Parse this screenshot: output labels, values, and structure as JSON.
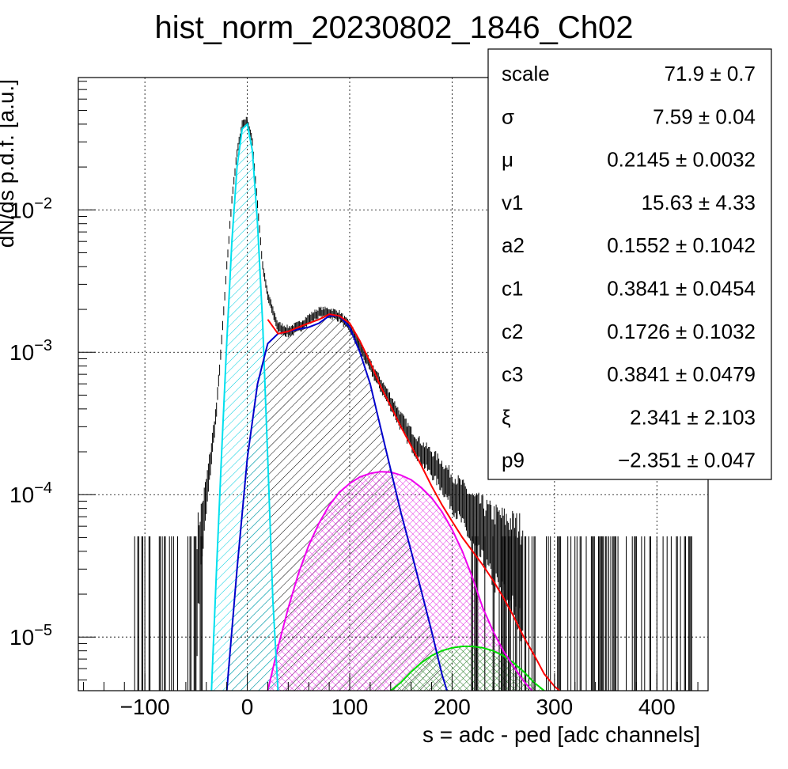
{
  "chart_data": {
    "type": "histogram",
    "title": "hist_norm_20230802_1846_Ch02",
    "xlabel": "s = adc - ped [adc channels]",
    "ylabel": "dN/ds p.d.f. [a.u.]",
    "x_range": [
      -165,
      450
    ],
    "y_range": [
      4.2e-06,
      0.085
    ],
    "y_log": true,
    "grid": true,
    "x_ticks": [
      {
        "value": -100,
        "label": "−100"
      },
      {
        "value": 0,
        "label": "0"
      },
      {
        "value": 100,
        "label": "100"
      },
      {
        "value": 200,
        "label": "200"
      },
      {
        "value": 300,
        "label": "300"
      },
      {
        "value": 400,
        "label": "400"
      }
    ],
    "y_ticks": [
      {
        "value": 1e-05,
        "base": "10",
        "exp": "−5"
      },
      {
        "value": 0.0001,
        "base": "10",
        "exp": "−4"
      },
      {
        "value": 0.001,
        "base": "10",
        "exp": "−3"
      },
      {
        "value": 0.01,
        "base": "10",
        "exp": "−2"
      }
    ],
    "data_envelope": {
      "x": [
        -50,
        -40,
        -30,
        -25,
        -20,
        -15,
        -10,
        -5,
        0,
        5,
        10,
        15,
        20,
        30,
        40,
        50,
        60,
        70,
        80,
        90,
        100,
        110,
        120,
        130,
        140,
        150,
        160,
        170,
        180,
        190,
        200,
        210,
        220,
        230,
        240,
        250,
        260,
        270
      ],
      "y": [
        3e-05,
        0.0001,
        0.0004,
        0.0012,
        0.004,
        0.012,
        0.025,
        0.04,
        0.042,
        0.03,
        0.011,
        0.004,
        0.0025,
        0.0015,
        0.0014,
        0.0015,
        0.0017,
        0.0019,
        0.0019,
        0.0018,
        0.0015,
        0.0011,
        0.0008,
        0.0006,
        0.00045,
        0.00033,
        0.00025,
        0.0002,
        0.00017,
        0.00014,
        0.00011,
        9e-05,
        7e-05,
        6e-05,
        5e-05,
        4.5e-05,
        4e-05,
        3.5e-05
      ]
    },
    "noise_floor_level": 5e-05,
    "noise_floor_range": [
      -110,
      445
    ],
    "series": [
      {
        "role": "total-fit",
        "color": "#ff0000",
        "x": [
          20,
          30,
          40,
          50,
          60,
          70,
          80,
          90,
          100,
          110,
          120,
          130,
          140,
          150,
          160,
          170,
          180,
          190,
          200,
          210,
          220,
          230,
          240,
          250,
          260,
          270,
          280,
          290,
          300,
          305
        ],
        "y": [
          0.0017,
          0.00135,
          0.0014,
          0.0015,
          0.0016,
          0.0017,
          0.00185,
          0.0018,
          0.0016,
          0.0012,
          0.00085,
          0.00058,
          0.00042,
          0.0003,
          0.00022,
          0.00016,
          0.000115,
          8.5e-05,
          6.5e-05,
          5e-05,
          4e-05,
          3.2e-05,
          2.5e-05,
          1.9e-05,
          1.4e-05,
          1e-05,
          7.5e-06,
          5.5e-06,
          4.5e-06,
          4.2e-06
        ]
      },
      {
        "role": "pedestal-peak",
        "color": "#00e0ee",
        "hatch": "cyan",
        "x": [
          -35,
          -30,
          -25,
          -20,
          -15,
          -10,
          -5,
          0,
          5,
          10,
          15,
          20,
          25,
          30
        ],
        "y": [
          4.2e-06,
          3e-05,
          0.0002,
          0.0012,
          0.006,
          0.02,
          0.037,
          0.04,
          0.026,
          0.008,
          0.0016,
          0.00018,
          1.8e-05,
          4.2e-06
        ]
      },
      {
        "role": "first-photoelectron",
        "color": "#0000cc",
        "hatch": "black",
        "x": [
          -20,
          -10,
          0,
          10,
          20,
          30,
          40,
          50,
          60,
          70,
          80,
          90,
          100,
          110,
          120,
          130,
          140,
          150,
          160,
          170,
          180,
          190,
          195
        ],
        "y": [
          4.2e-06,
          3e-05,
          0.00018,
          0.0006,
          0.00115,
          0.00135,
          0.0014,
          0.00145,
          0.0015,
          0.0016,
          0.0018,
          0.0018,
          0.0015,
          0.001,
          0.0006,
          0.0003,
          0.00015,
          7.5e-05,
          4e-05,
          2.1e-05,
          1.1e-05,
          5.5e-06,
          4.2e-06
        ]
      },
      {
        "role": "second-photoelectron",
        "color": "#ee00ee",
        "hatch": "magenta",
        "x": [
          20,
          30,
          40,
          50,
          60,
          70,
          80,
          90,
          100,
          110,
          120,
          130,
          140,
          150,
          160,
          170,
          180,
          190,
          200,
          210,
          220,
          230,
          240,
          250,
          260,
          270,
          278
        ],
        "y": [
          4.2e-06,
          8.5e-06,
          1.6e-05,
          2.8e-05,
          4.4e-05,
          6.3e-05,
          8.4e-05,
          0.000104,
          0.00012,
          0.000133,
          0.000141,
          0.000145,
          0.000144,
          0.000137,
          0.000127,
          0.000112,
          9.5e-05,
          7.6e-05,
          5.7e-05,
          4e-05,
          2.6e-05,
          1.6e-05,
          1.1e-05,
          8e-06,
          6.2e-06,
          4.9e-06,
          4.2e-06
        ]
      },
      {
        "role": "third-photoelectron",
        "color": "#00dd00",
        "hatch": "green",
        "x": [
          140,
          150,
          160,
          170,
          180,
          190,
          200,
          210,
          220,
          230,
          240,
          250,
          260,
          270,
          280,
          290
        ],
        "y": [
          4.2e-06,
          4.8e-06,
          5.7e-06,
          6.6e-06,
          7.4e-06,
          8e-06,
          8.4e-06,
          8.6e-06,
          8.6e-06,
          8.4e-06,
          8e-06,
          7.4e-06,
          6.6e-06,
          5.7e-06,
          4.8e-06,
          4.2e-06
        ]
      }
    ]
  },
  "stats": [
    {
      "name": "scale",
      "value": "71.9",
      "error": "0.7"
    },
    {
      "name": "σ",
      "value": "7.59",
      "error": "0.04"
    },
    {
      "name": "μ",
      "value": "0.2145",
      "error": "0.0032"
    },
    {
      "name": "v1",
      "value": "15.63",
      "error": "4.33"
    },
    {
      "name": "a2",
      "value": "0.1552",
      "error": "0.1042"
    },
    {
      "name": "c1",
      "value": "0.3841",
      "error": "0.0454"
    },
    {
      "name": "c2",
      "value": "0.1726",
      "error": "0.1032"
    },
    {
      "name": "c3",
      "value": "0.3841",
      "error": "0.0479"
    },
    {
      "name": "ξ",
      "value": "2.341",
      "error": "2.103"
    },
    {
      "name": "p9",
      "value": "−2.351",
      "error": "0.047"
    }
  ],
  "pm_symbol": "±"
}
